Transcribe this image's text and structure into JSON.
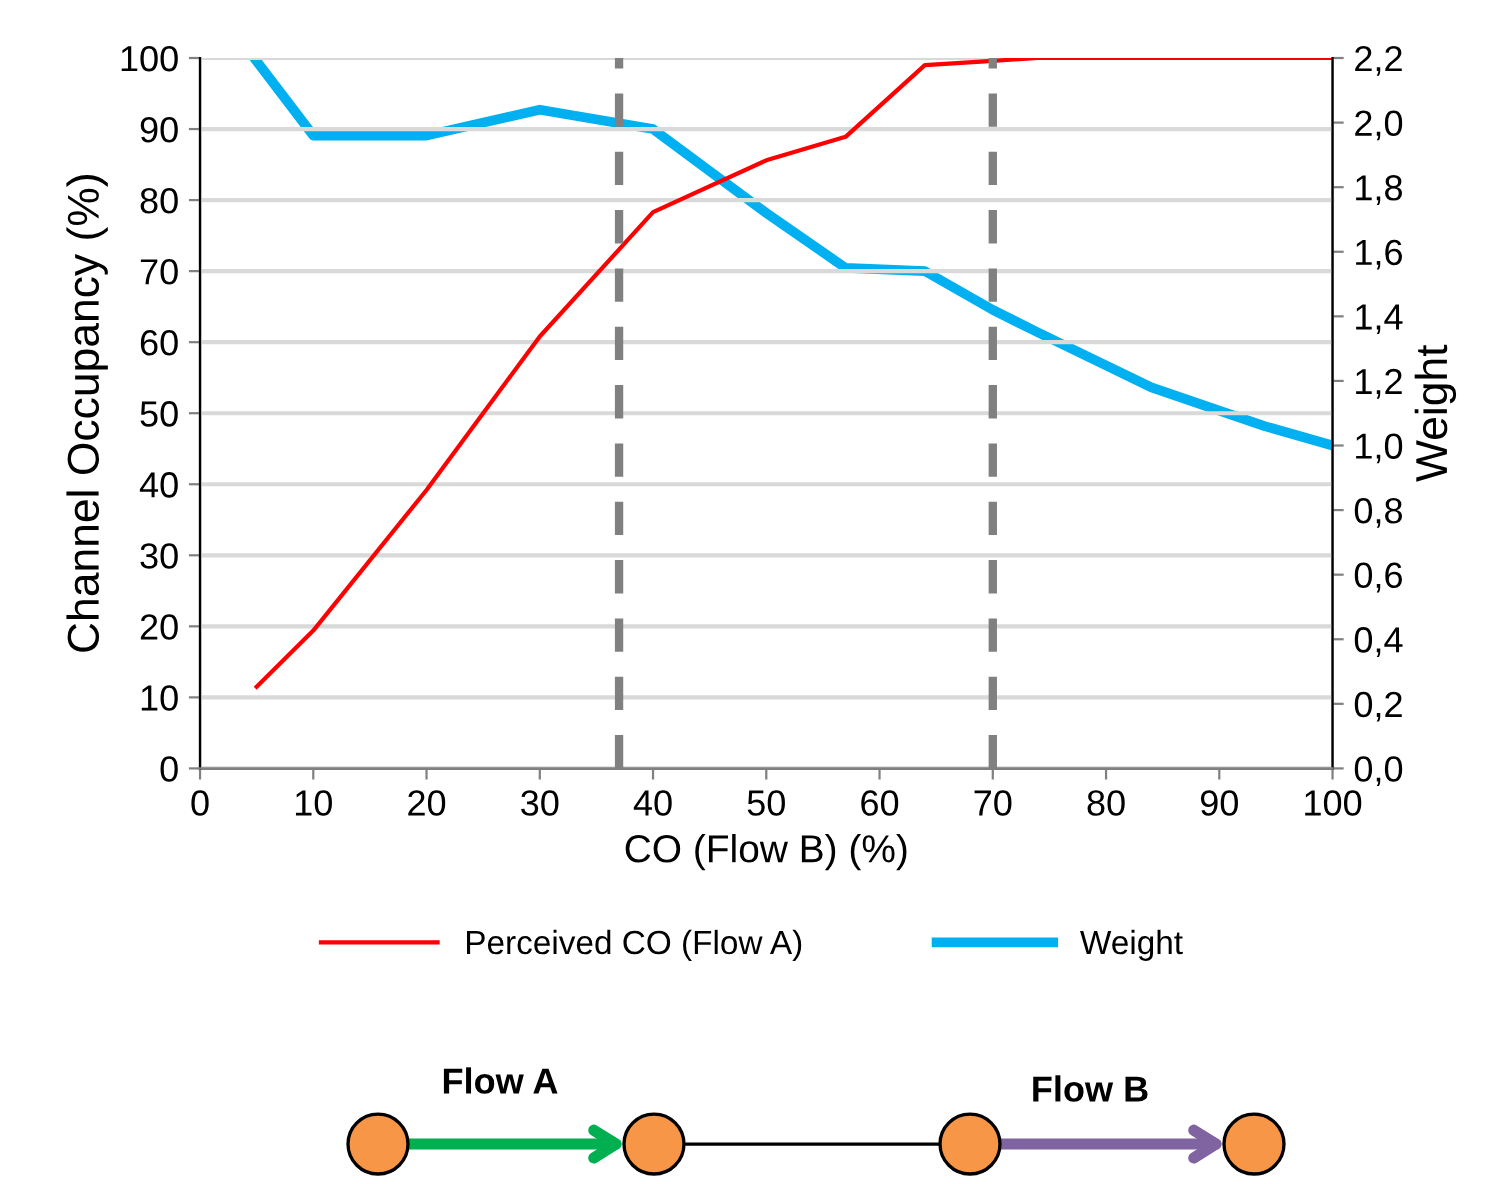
{
  "chart_data": {
    "type": "line",
    "xlabel": "CO (Flow B) (%)",
    "ylabel": "Channel Occupancy (%)",
    "y2label": "Weight",
    "x": [
      5,
      10,
      20,
      30,
      40,
      50,
      57,
      64,
      70,
      74,
      84,
      94,
      100
    ],
    "series": [
      {
        "name": "Perceived CO (Flow A)",
        "color": "#ff0000",
        "values": [
          11.5,
          19.4,
          39.2,
          60.8,
          78.3,
          85.6,
          88.9,
          99,
          99.6,
          100,
          100,
          100,
          100
        ]
      },
      {
        "name": "Weight",
        "color": "#00b0f0",
        "axis": "y2",
        "values": [
          2.19,
          1.96,
          1.96,
          2.04,
          1.98,
          1.72,
          1.55,
          1.54,
          1.42,
          1.35,
          1.18,
          1.06,
          1.0
        ]
      }
    ],
    "xlim": [
      0,
      100
    ],
    "xticks": [
      0,
      10,
      20,
      30,
      40,
      50,
      60,
      70,
      80,
      90,
      100
    ],
    "ylim": [
      0,
      100
    ],
    "yticks": [
      0,
      10,
      20,
      30,
      40,
      50,
      60,
      70,
      80,
      90,
      100
    ],
    "y2lim": [
      0,
      2.2
    ],
    "y2ticks": [
      {
        "value": 0,
        "label": "0,0"
      },
      {
        "value": 0.2,
        "label": "0,2"
      },
      {
        "value": 0.4,
        "label": "0,4"
      },
      {
        "value": 0.6,
        "label": "0,6"
      },
      {
        "value": 0.8,
        "label": "0,8"
      },
      {
        "value": 1.0,
        "label": "1,0"
      },
      {
        "value": 1.2,
        "label": "1,2"
      },
      {
        "value": 1.4,
        "label": "1,4"
      },
      {
        "value": 1.6,
        "label": "1,6"
      },
      {
        "value": 1.8,
        "label": "1,8"
      },
      {
        "value": 2.0,
        "label": "2,0"
      },
      {
        "value": 2.2,
        "label": "2,2"
      }
    ],
    "ref_lines": [
      {
        "axis": "x",
        "value": 37,
        "color": "#808080",
        "line_style": "dashed"
      },
      {
        "axis": "x",
        "value": 70,
        "color": "#808080",
        "line_style": "dashed"
      }
    ],
    "annotations": [
      "Flow A",
      "Flow B"
    ],
    "grid": "y",
    "legend": "bottom",
    "marker": "none",
    "line_style": "solid"
  }
}
